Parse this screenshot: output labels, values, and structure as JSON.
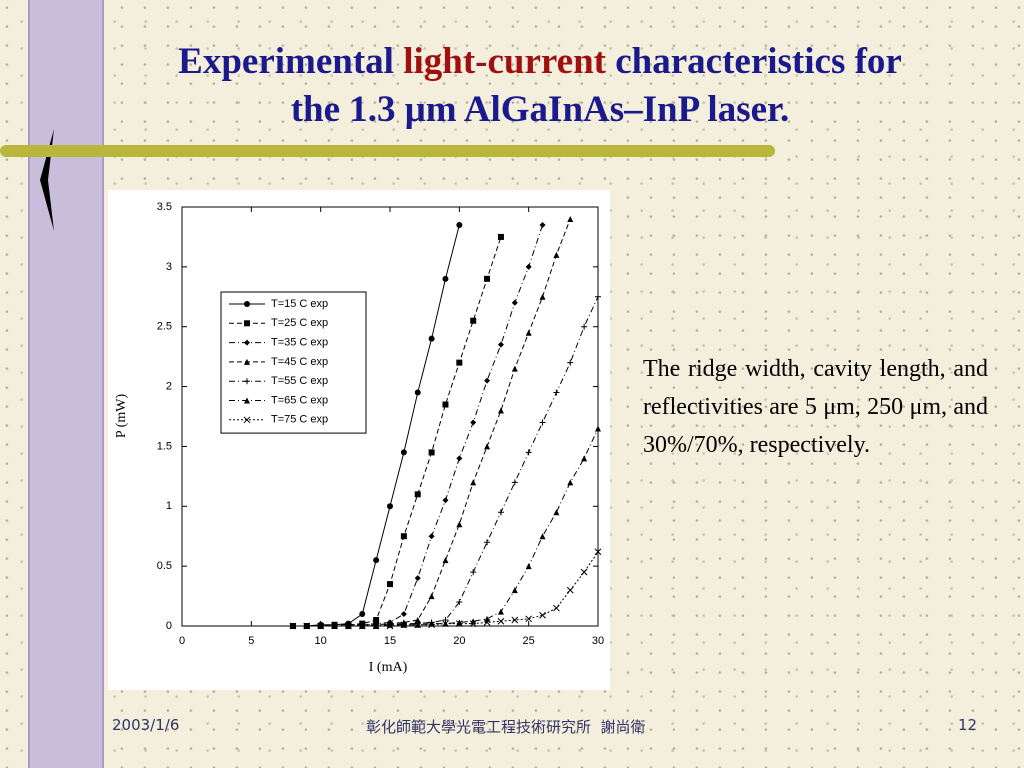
{
  "slide": {
    "title": {
      "before": "Experimental ",
      "highlight": "light-current",
      "after": " characteristics for",
      "line2": "the 1.3 μm AlGaInAs–InP laser."
    },
    "body": "The ridge width, cavity length, and reflectivities are 5 μm, 250 μm, and 30%/70%, respectively.",
    "footer": {
      "date": "2003/1/6",
      "org": "彰化師範大學光電工程技術研究所  謝尚衛",
      "page": "12"
    }
  },
  "chart_data": {
    "type": "line",
    "x_label": "I (mA)",
    "y_label": "P (mW)",
    "xlim": [
      0,
      30
    ],
    "xticks": [
      0,
      5,
      10,
      15,
      20,
      25,
      30
    ],
    "ylim": [
      0,
      3.5
    ],
    "yticks": [
      0,
      0.5,
      1,
      1.5,
      2,
      2.5,
      3,
      3.5
    ],
    "legend": "upper left",
    "x": [
      8,
      9,
      10,
      11,
      12,
      13,
      14,
      15,
      16,
      17,
      18,
      19,
      20,
      21,
      22,
      23,
      24,
      25,
      26,
      27,
      28,
      29,
      30
    ],
    "series": [
      {
        "name": "T=15 C exp",
        "color": "#000000",
        "marker": "circle",
        "dash": "solid",
        "values": [
          0,
          0,
          0.01,
          0.01,
          0.02,
          0.1,
          0.55,
          1.0,
          1.45,
          1.95,
          2.4,
          2.9,
          3.35,
          null,
          null,
          null,
          null,
          null,
          null,
          null,
          null,
          null,
          null
        ]
      },
      {
        "name": "T=25 C exp",
        "color": "#000000",
        "marker": "square",
        "dash": "dashed",
        "values": [
          0,
          0,
          0,
          0.01,
          0.01,
          0.02,
          0.05,
          0.35,
          0.75,
          1.1,
          1.45,
          1.85,
          2.2,
          2.55,
          2.9,
          3.25,
          null,
          null,
          null,
          null,
          null,
          null,
          null
        ]
      },
      {
        "name": "T=35 C exp",
        "color": "#000000",
        "marker": "diamond",
        "dash": "dashdot",
        "values": [
          0,
          0,
          0,
          0,
          0.01,
          0.01,
          0.02,
          0.03,
          0.1,
          0.4,
          0.75,
          1.05,
          1.4,
          1.7,
          2.05,
          2.35,
          2.7,
          3.0,
          3.35,
          null,
          null,
          null,
          null
        ]
      },
      {
        "name": "T=45 C exp",
        "color": "#000000",
        "marker": "triangle",
        "dash": "dashed",
        "values": [
          0,
          0,
          0,
          0,
          0,
          0.01,
          0.01,
          0.02,
          0.03,
          0.05,
          0.25,
          0.55,
          0.85,
          1.2,
          1.5,
          1.8,
          2.15,
          2.45,
          2.75,
          3.1,
          3.4,
          null,
          null
        ]
      },
      {
        "name": "T=55 C exp",
        "color": "#000000",
        "marker": "plus",
        "dash": "dashdot",
        "values": [
          0,
          0,
          0,
          0,
          0,
          0,
          0.01,
          0.01,
          0.02,
          0.02,
          0.03,
          0.05,
          0.2,
          0.45,
          0.7,
          0.95,
          1.2,
          1.45,
          1.7,
          1.95,
          2.2,
          2.5,
          2.75
        ]
      },
      {
        "name": "T=65 C exp",
        "color": "#000000",
        "marker": "triangle",
        "dash": "dashdot",
        "values": [
          0,
          0,
          0,
          0,
          0,
          0,
          0,
          0.01,
          0.01,
          0.01,
          0.02,
          0.02,
          0.03,
          0.04,
          0.06,
          0.12,
          0.3,
          0.5,
          0.75,
          0.95,
          1.2,
          1.4,
          1.65
        ]
      },
      {
        "name": "T=75 C exp",
        "color": "#000000",
        "marker": "cross",
        "dash": "dotted",
        "values": [
          0,
          0,
          0,
          0,
          0,
          0,
          0,
          0,
          0.01,
          0.01,
          0.01,
          0.02,
          0.02,
          0.02,
          0.03,
          0.04,
          0.05,
          0.06,
          0.09,
          0.15,
          0.3,
          0.45,
          0.62
        ]
      }
    ]
  }
}
